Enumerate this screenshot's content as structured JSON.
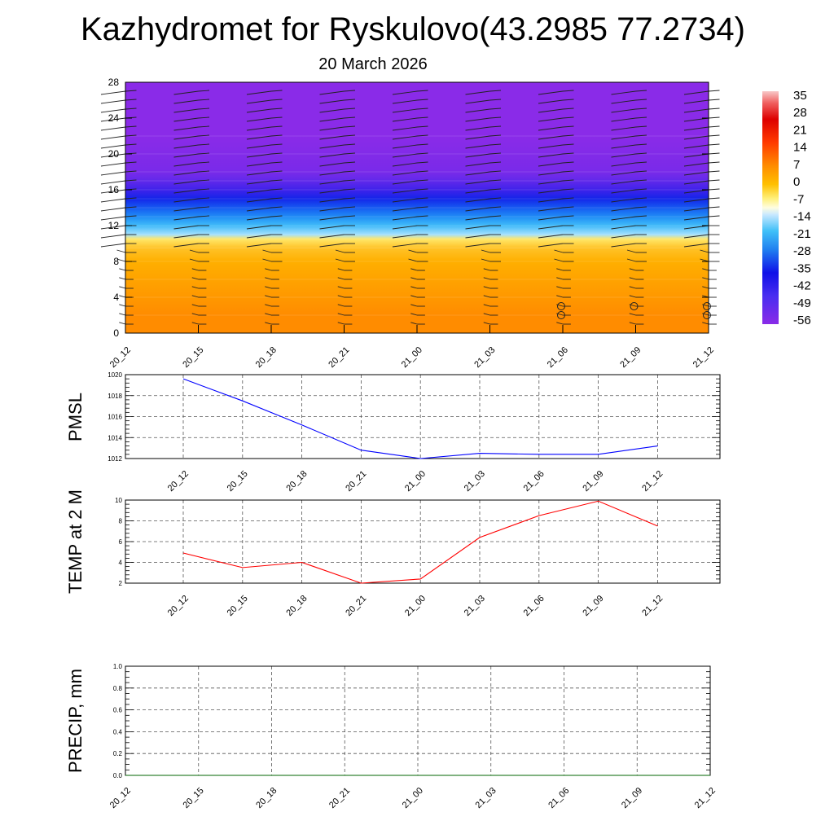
{
  "header": {
    "title": "Kazhydromet for Ryskulovo(43.2985 77.2734)",
    "subtitle": "20 March 2026"
  },
  "chart_data": [
    {
      "type": "heatmap",
      "title": "Kazhydromet for Ryskulovo(43.2985 77.2734)",
      "subtitle": "20 March 2026",
      "x": [
        "20_12",
        "20_15",
        "20_18",
        "20_21",
        "21_00",
        "21_03",
        "21_06",
        "21_09",
        "21_12"
      ],
      "yticks": [
        0,
        4,
        8,
        12,
        16,
        20,
        24,
        28
      ],
      "ylim": [
        0,
        28
      ],
      "colorbar": {
        "labels": [
          "35",
          "28",
          "21",
          "14",
          "7",
          "0",
          "-7",
          "-14",
          "-21",
          "-28",
          "-35",
          "-42",
          "-49",
          "-56"
        ],
        "min": -56,
        "max": 35
      },
      "temperature_profile": [
        {
          "y": 0,
          "value": 3
        },
        {
          "y": 2,
          "value": 3
        },
        {
          "y": 4,
          "value": 2
        },
        {
          "y": 6,
          "value": 1
        },
        {
          "y": 8,
          "value": 0
        },
        {
          "y": 9.5,
          "value": -2
        },
        {
          "y": 10.5,
          "value": -6
        },
        {
          "y": 11,
          "value": -16
        },
        {
          "y": 12,
          "value": -22
        },
        {
          "y": 13,
          "value": -28
        },
        {
          "y": 14,
          "value": -34
        },
        {
          "y": 15,
          "value": -40
        },
        {
          "y": 16,
          "value": -47
        },
        {
          "y": 17,
          "value": -51
        },
        {
          "y": 18,
          "value": -54
        },
        {
          "y": 20,
          "value": -55
        },
        {
          "y": 22,
          "value": -56
        },
        {
          "y": 28,
          "value": -56
        }
      ],
      "wind_barb_levels": [
        0,
        1,
        2,
        3,
        4,
        5,
        6,
        7,
        8,
        9,
        10,
        11,
        12,
        13,
        14,
        15,
        16,
        17,
        18,
        19,
        20,
        21,
        22,
        23,
        24,
        25,
        26,
        27,
        28
      ],
      "calm_markers": [
        {
          "x": "21_06",
          "y": 3
        },
        {
          "x": "21_06",
          "y": 2
        },
        {
          "x": "21_09",
          "y": 3
        },
        {
          "x": "21_12",
          "y": 3
        },
        {
          "x": "21_12",
          "y": 2
        }
      ],
      "grid": false
    },
    {
      "type": "line",
      "ylabel": "PMSL",
      "categories": [
        "20_12",
        "20_15",
        "20_18",
        "20_21",
        "21_00",
        "21_03",
        "21_06",
        "21_09",
        "21_12"
      ],
      "values": [
        1019.6,
        1017.5,
        1015.2,
        1012.8,
        1012.0,
        1012.5,
        1012.4,
        1012.4,
        1013.2
      ],
      "ylim": [
        1012,
        1020
      ],
      "yticks": [
        1012,
        1014,
        1016,
        1018,
        1020
      ],
      "color": "#0000ff",
      "grid": true
    },
    {
      "type": "line",
      "ylabel": "TEMP at 2 M",
      "categories": [
        "20_12",
        "20_15",
        "20_18",
        "20_21",
        "21_00",
        "21_03",
        "21_06",
        "21_09",
        "21_12"
      ],
      "values": [
        4.9,
        3.5,
        4.0,
        2.0,
        2.4,
        6.4,
        8.5,
        9.9,
        7.5
      ],
      "ylim": [
        2,
        10
      ],
      "yticks": [
        2,
        4,
        6,
        8,
        10
      ],
      "color": "#ff0000",
      "grid": true
    },
    {
      "type": "line",
      "ylabel": "PRECIP, mm",
      "categories": [
        "20_12",
        "20_15",
        "20_18",
        "20_21",
        "21_00",
        "21_03",
        "21_06",
        "21_09",
        "21_12"
      ],
      "values": [
        0,
        0,
        0,
        0,
        0,
        0,
        0,
        0,
        0
      ],
      "ylim": [
        0,
        1
      ],
      "yticks": [
        0.0,
        0.2,
        0.4,
        0.6,
        0.8,
        1.0
      ],
      "ytick_labels": [
        "0.0",
        "0.2",
        "0.4",
        "0.6",
        "0.8",
        "1.0"
      ],
      "color": "#006400",
      "grid": true
    }
  ]
}
